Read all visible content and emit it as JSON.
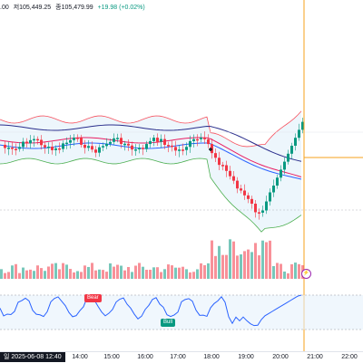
{
  "legend": {
    "open_prefix": ".00",
    "high": "저105,449.25",
    "close": "종105,479.99",
    "change": "+19.98 (+0.02%)"
  },
  "time_axis": {
    "ticks": [
      "14:00",
      "15:00",
      "16:00",
      "17:00",
      "18:00",
      "19:00",
      "20:00",
      "21:00",
      "22:00"
    ],
    "cursor_label": "일 2025-06-08   12:40"
  },
  "rsi_tags": {
    "bear": "Bear",
    "bull": "Bull"
  },
  "flag_icon": "lightning-icon",
  "colors": {
    "up": "#089981",
    "down": "#f23645",
    "bb": "#f7525f",
    "bb_fill": "#e6f2fb",
    "ma_navy": "#2a2e8c",
    "ma_red": "#e91e63",
    "ma_blue": "#2962ff",
    "crosshair": "#f7a21b",
    "rsi": "#2962ff"
  }
}
